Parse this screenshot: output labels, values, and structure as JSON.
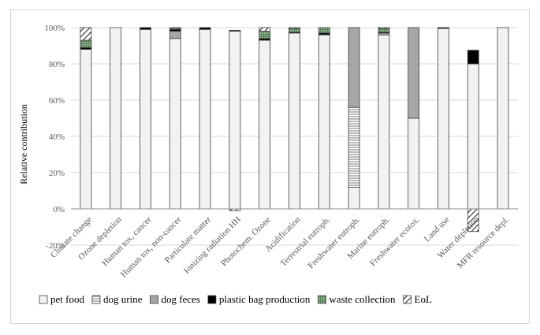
{
  "chart_data": {
    "type": "bar",
    "stacked": true,
    "ylabel": "Relative contribution",
    "xlabel": "",
    "ylim": [
      -20,
      100
    ],
    "ytick_values": [
      -20,
      0,
      20,
      40,
      60,
      80,
      100
    ],
    "ytick_labels": [
      "-20%",
      "0%",
      "20%",
      "40%",
      "60%",
      "80%",
      "100%"
    ],
    "grid": "horizontal",
    "legend_position": "bottom",
    "categories": [
      "Climate change",
      "Ozone depletion",
      "Human tox, cancer",
      "Human tox, non-cancer",
      "Particulate matter",
      "Ionizing radiation HH",
      "Photochem. Ozone",
      "Acidification",
      "Terrestrial eutroph.",
      "Freshwater eutroph.",
      "Marine eutroph.",
      "Freshwater ecotox.",
      "Land use",
      "Water depletion",
      "MFR resource depl."
    ],
    "series": [
      {
        "name": "pet food",
        "values": [
          88,
          100,
          99,
          94,
          99,
          98,
          93,
          97,
          96,
          12,
          96,
          50,
          99.5,
          80,
          100
        ]
      },
      {
        "name": "dog urine",
        "values": [
          0,
          0,
          0,
          0,
          0,
          0,
          0,
          0,
          0,
          44,
          0,
          0,
          0,
          0,
          0
        ]
      },
      {
        "name": "dog feces",
        "values": [
          0,
          0,
          0,
          4,
          0,
          0,
          0,
          0,
          0,
          44,
          1,
          50,
          0,
          0,
          0
        ]
      },
      {
        "name": "plastic bag production",
        "values": [
          1,
          0,
          1,
          1,
          1,
          0.5,
          1,
          0.5,
          1,
          0,
          0.5,
          0,
          0.5,
          7.5,
          0
        ]
      },
      {
        "name": "waste collection",
        "values": [
          4,
          0,
          0,
          0.5,
          0,
          0,
          4,
          2,
          3,
          0,
          2,
          0,
          0,
          0,
          0
        ]
      },
      {
        "name": "EoL",
        "values": [
          7,
          0,
          0,
          0.5,
          0,
          -1,
          2,
          0.5,
          0,
          0,
          0.5,
          0,
          0,
          -12.5,
          0
        ]
      }
    ],
    "series_colors": [
      "#f2f2f2",
      "#ffffff",
      "#a6a6a6",
      "#000000",
      "#6d8f6d",
      "#ffffff"
    ],
    "series_patterns": [
      "solid",
      "horizontal-lines",
      "solid",
      "solid",
      "grid",
      "diagonal-hatch"
    ]
  }
}
